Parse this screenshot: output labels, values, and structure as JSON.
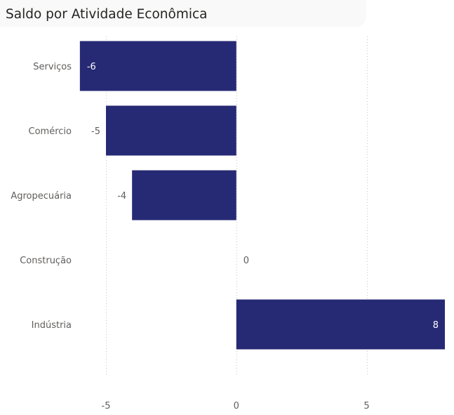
{
  "title": "Saldo por Atividade Econômica",
  "chart_data": {
    "type": "bar",
    "orientation": "horizontal",
    "title": "Saldo por Atividade Econômica",
    "categories": [
      "Serviços",
      "Comércio",
      "Agropecuária",
      "Construção",
      "Indústria"
    ],
    "values": [
      -6,
      -5,
      -4,
      0,
      8
    ],
    "data_labels": [
      "-6",
      "-5",
      "-4",
      "0",
      "8"
    ],
    "x_ticks": [
      -5,
      0,
      5
    ],
    "x_tick_labels": [
      "-5",
      "0",
      "5"
    ],
    "xlim": [
      -6.05,
      8
    ],
    "gridlines": "vertical-dotted",
    "legend": "none",
    "bar_color": "#262973",
    "inside_label_color": "#ffffff",
    "outside_label_color": "#605e5c",
    "grid_color": "#c8c6c4"
  }
}
